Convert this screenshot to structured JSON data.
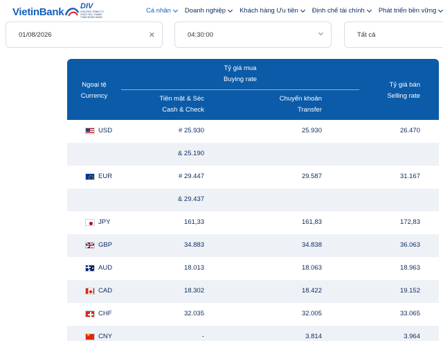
{
  "brand": {
    "logo_text": "VietinBank",
    "badge_title": "DIV",
    "badge_sub": "CHƯƠNG TRÌNH TỔ CHỨC NỢ, THANH TOÁN NGÂN HÀNG"
  },
  "nav": {
    "items": [
      {
        "label": "Cá nhân",
        "active": true
      },
      {
        "label": "Doanh nghiệp",
        "active": false
      },
      {
        "label": "Khách hàng Ưu tiên",
        "active": false
      },
      {
        "label": "Định chế tài chính",
        "active": false
      },
      {
        "label": "Phát triển bền vững",
        "active": false
      }
    ]
  },
  "filters": {
    "date": "01/08/2026",
    "time": "04:30:00",
    "category": "Tất cả"
  },
  "table": {
    "headers": {
      "currency_vi": "Ngoại tệ",
      "currency_en": "Currency",
      "buying_vi": "Tỷ giá mua",
      "buying_en": "Buying rate",
      "cash_vi": "Tiền mặt & Séc",
      "cash_en": "Cash & Check",
      "transfer_vi": "Chuyển khoản",
      "transfer_en": "Transfer",
      "selling_vi": "Tỷ giá bán",
      "selling_en": "Selling rate"
    },
    "rows": [
      {
        "flag": "us-flag-icon",
        "code": "USD",
        "cash": "# 25.930",
        "transfer": "25.930",
        "sell": "26.470"
      },
      {
        "flag": "",
        "code": "",
        "cash": "& 25.190",
        "transfer": "",
        "sell": ""
      },
      {
        "flag": "eu-flag-icon",
        "code": "EUR",
        "cash": "# 29.447",
        "transfer": "29.587",
        "sell": "31.167"
      },
      {
        "flag": "",
        "code": "",
        "cash": "& 29.437",
        "transfer": "",
        "sell": ""
      },
      {
        "flag": "jp-flag-icon",
        "code": "JPY",
        "cash": "161,33",
        "transfer": "161,83",
        "sell": "172,83"
      },
      {
        "flag": "gb-flag-icon",
        "code": "GBP",
        "cash": "34.883",
        "transfer": "34.838",
        "sell": "36.063"
      },
      {
        "flag": "au-flag-icon",
        "code": "AUD",
        "cash": "18.013",
        "transfer": "18.063",
        "sell": "18.963"
      },
      {
        "flag": "ca-flag-icon",
        "code": "CAD",
        "cash": "18.302",
        "transfer": "18.422",
        "sell": "19.152"
      },
      {
        "flag": "ch-flag-icon",
        "code": "CHF",
        "cash": "32.035",
        "transfer": "32.005",
        "sell": "33.065"
      },
      {
        "flag": "cn-flag-icon",
        "code": "CNY",
        "cash": "-",
        "transfer": "3.814",
        "sell": "3.964"
      }
    ]
  },
  "colors": {
    "header_blue": "#0b5ba8",
    "brand_blue": "#1560bd",
    "row_alt": "#eef2f7",
    "text_navy": "#0a2a5c"
  }
}
